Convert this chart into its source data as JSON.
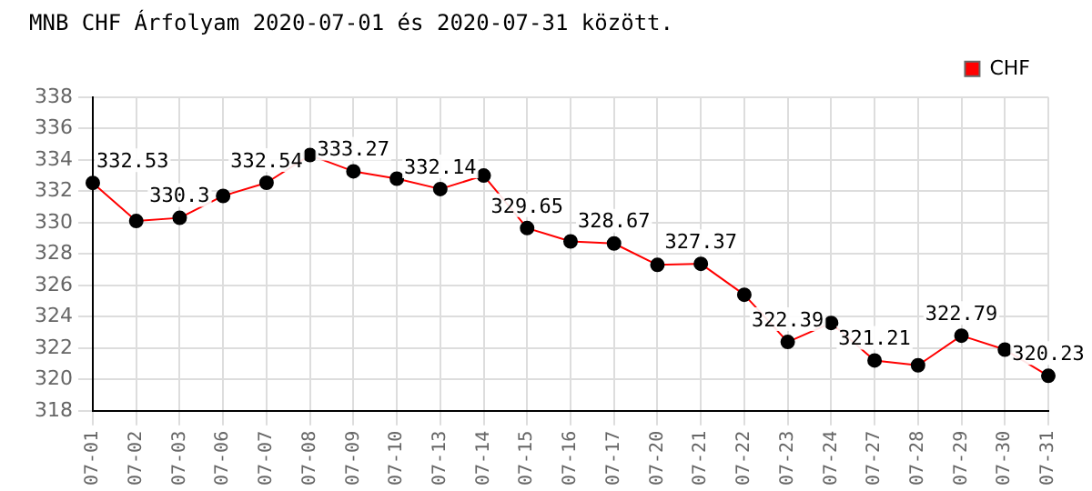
{
  "chart_data": {
    "type": "line",
    "title": "MNB CHF Árfolyam 2020-07-01 és 2020-07-31 között.",
    "categories": [
      "07-01",
      "07-02",
      "07-03",
      "07-06",
      "07-07",
      "07-08",
      "07-09",
      "07-10",
      "07-13",
      "07-14",
      "07-15",
      "07-16",
      "07-17",
      "07-20",
      "07-21",
      "07-22",
      "07-23",
      "07-24",
      "07-27",
      "07-28",
      "07-29",
      "07-30",
      "07-31"
    ],
    "series": [
      {
        "name": "CHF",
        "color": "#ff0000",
        "values": [
          332.53,
          330.1,
          330.3,
          331.7,
          332.54,
          334.3,
          333.27,
          332.8,
          332.14,
          333.0,
          329.65,
          328.8,
          328.67,
          327.3,
          327.37,
          325.4,
          322.39,
          323.6,
          321.21,
          320.9,
          322.79,
          321.9,
          320.23
        ],
        "value_labels": [
          "332.53",
          null,
          "330.3",
          null,
          "332.54",
          null,
          "333.27",
          null,
          "332.14",
          null,
          "329.65",
          null,
          "328.67",
          null,
          "327.37",
          null,
          "322.39",
          null,
          "321.21",
          null,
          "322.79",
          null,
          "320.23"
        ]
      }
    ],
    "ylim": [
      318,
      338
    ],
    "yticks": [
      318,
      320,
      322,
      324,
      326,
      328,
      330,
      332,
      334,
      336,
      338
    ],
    "grid": true,
    "legend": "top right",
    "marker": "circle",
    "line_style": "solid"
  }
}
